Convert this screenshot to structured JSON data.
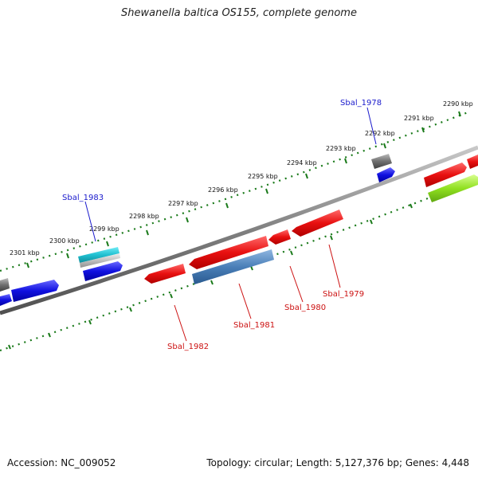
{
  "title": "Shewanella baltica OS155, complete genome",
  "accession": "Accession: NC_009052",
  "summary": "Topology: circular; Length: 5,127,376 bp; Genes: 4,448",
  "scale_labels": [
    {
      "text": "2290 kbp"
    },
    {
      "text": "2291 kbp"
    },
    {
      "text": "2292 kbp"
    },
    {
      "text": "2293 kbp"
    },
    {
      "text": "2294 kbp"
    },
    {
      "text": "2295 kbp"
    },
    {
      "text": "2296 kbp"
    },
    {
      "text": "2297 kbp"
    },
    {
      "text": "2298 kbp"
    },
    {
      "text": "2299 kbp"
    },
    {
      "text": "2300 kbp"
    },
    {
      "text": "2301 kbp"
    }
  ],
  "gene_labels": [
    {
      "text": "Sbal_1978",
      "color": "#1a1acc"
    },
    {
      "text": "Sbal_1983",
      "color": "#1a1acc"
    },
    {
      "text": "Sbal_1979",
      "color": "#cc1111"
    },
    {
      "text": "Sbal_1980",
      "color": "#cc1111"
    },
    {
      "text": "Sbal_1981",
      "color": "#cc1111"
    },
    {
      "text": "Sbal_1982",
      "color": "#cc1111"
    }
  ],
  "colors": {
    "backbone": "#8a8a8a",
    "scale_ticks": "#1a7a1a",
    "gene_red": "#e81010",
    "gene_blue": "#1010e0",
    "gene_gray": "#707070",
    "gene_steelblue": "#4a7fb8",
    "gene_cyan": "#20c0d0",
    "gene_green": "#90e020"
  }
}
